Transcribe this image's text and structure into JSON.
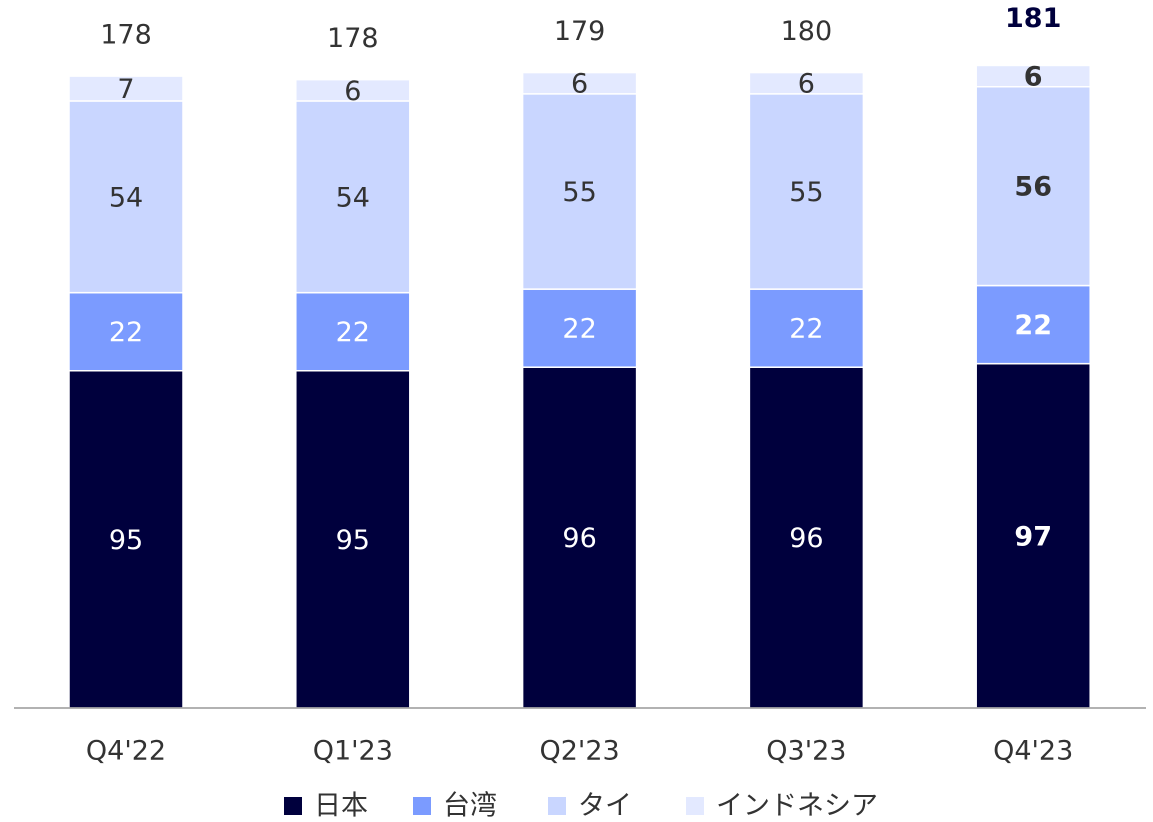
{
  "chart_data": {
    "type": "stacked-bar",
    "categories": [
      "Q4'22",
      "Q1'23",
      "Q2'23",
      "Q3'23",
      "Q4'23"
    ],
    "series": [
      {
        "name": "日本",
        "color": "#00003d",
        "values": [
          95,
          95,
          96,
          96,
          97
        ]
      },
      {
        "name": "台湾",
        "color": "#7b9bff",
        "values": [
          22,
          22,
          22,
          22,
          22
        ]
      },
      {
        "name": "タイ",
        "color": "#c9d6ff",
        "values": [
          54,
          54,
          55,
          55,
          56
        ]
      },
      {
        "name": "インドネシア",
        "color": "#e3e9ff",
        "values": [
          7,
          6,
          6,
          6,
          6
        ]
      }
    ],
    "totals": [
      178,
      178,
      179,
      180,
      181
    ]
  }
}
